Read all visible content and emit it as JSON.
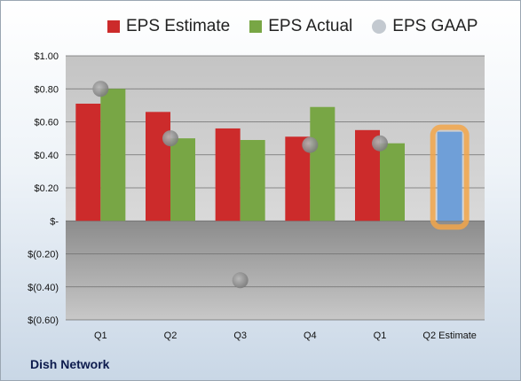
{
  "chart_data": {
    "type": "bar",
    "categories": [
      "Q1",
      "Q2",
      "Q3",
      "Q4",
      "Q1",
      "Q2 Estimate"
    ],
    "series": [
      {
        "name": "EPS Estimate",
        "type": "bar",
        "color": "#cc2b2b",
        "values": [
          0.71,
          0.66,
          0.56,
          0.51,
          0.55,
          null
        ]
      },
      {
        "name": "EPS Actual",
        "type": "bar",
        "color": "#78a645",
        "values": [
          0.8,
          0.5,
          0.49,
          0.69,
          0.47,
          null
        ]
      },
      {
        "name": "EPS GAAP",
        "type": "scatter",
        "color": "#a8adb3",
        "values": [
          0.8,
          0.5,
          -0.36,
          0.46,
          0.47,
          null
        ]
      },
      {
        "name": "Q2 Estimate",
        "type": "bar",
        "color": "#6f9fd8",
        "highlight": "#f2a64a",
        "values": [
          null,
          null,
          null,
          null,
          null,
          0.54
        ]
      }
    ],
    "yticks": [
      1.0,
      0.8,
      0.6,
      0.4,
      0.2,
      0,
      -0.2,
      -0.4,
      -0.6
    ],
    "ytick_labels": [
      "$1.00",
      "$0.80",
      "$0.60",
      "$0.40",
      "$0.20",
      "$-",
      "$(0.20)",
      "$(0.40)",
      "$(0.60)"
    ],
    "ylim": [
      -0.6,
      1.0
    ],
    "legend_position": "top",
    "grid": true
  },
  "company": "Dish Network"
}
